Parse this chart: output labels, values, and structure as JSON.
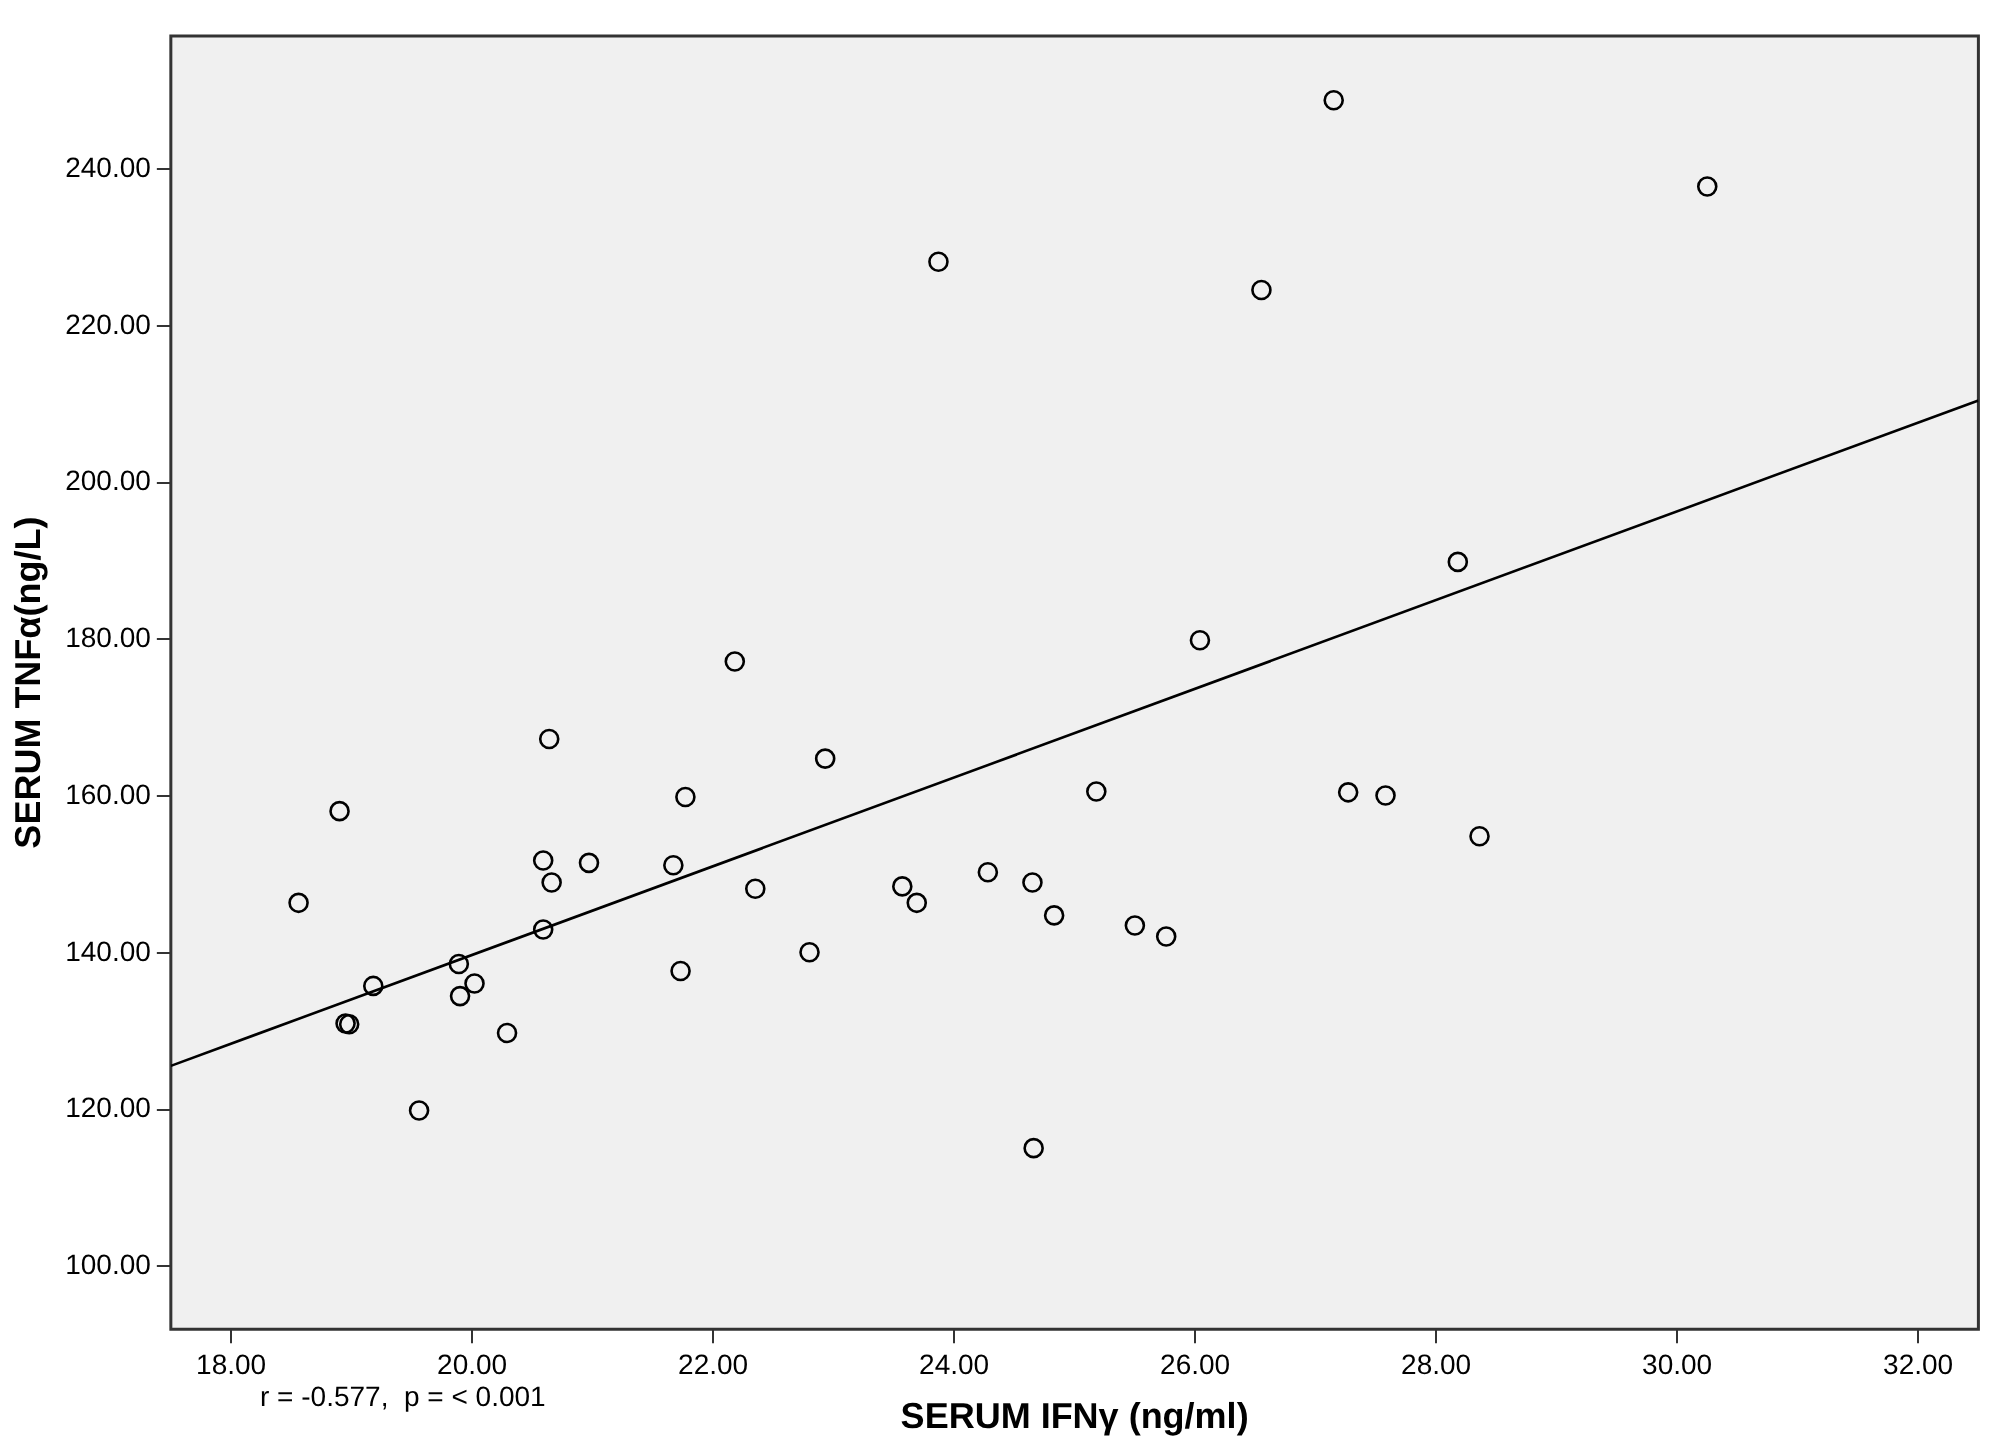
{
  "chart_data": {
    "type": "scatter",
    "xlabel": "SERUM IFNγ (ng/ml)",
    "ylabel": "SERUM TNFα(ng/L)",
    "annotations": [
      "r = -0.577,  p = < 0.001"
    ],
    "xlim": [
      17.5,
      32.5
    ],
    "ylim": [
      92,
      257
    ],
    "xticks": [
      {
        "value": 18,
        "label": "18.00"
      },
      {
        "value": 20,
        "label": "20.00"
      },
      {
        "value": 22,
        "label": "22.00"
      },
      {
        "value": 24,
        "label": "24.00"
      },
      {
        "value": 26,
        "label": "26.00"
      },
      {
        "value": 28,
        "label": "28.00"
      },
      {
        "value": 30,
        "label": "30.00"
      },
      {
        "value": 32,
        "label": "32.00"
      }
    ],
    "yticks": [
      {
        "value": 100,
        "label": "100.00"
      },
      {
        "value": 120,
        "label": "120.00"
      },
      {
        "value": 140,
        "label": "140.00"
      },
      {
        "value": 160,
        "label": "160.00"
      },
      {
        "value": 180,
        "label": "180.00"
      },
      {
        "value": 200,
        "label": "200.00"
      },
      {
        "value": 220,
        "label": "220.00"
      },
      {
        "value": 240,
        "label": "240.00"
      }
    ],
    "grid": false,
    "legend": false,
    "marker": "circle",
    "series": [
      {
        "color": "#000000",
        "x": [
          27.15,
          30.25,
          23.87,
          26.55,
          28.18,
          26.04,
          25.18,
          27.27,
          27.58,
          28.36,
          23.57,
          23.69,
          24.28,
          24.65,
          24.83,
          25.5,
          25.76,
          22.18,
          20.64,
          18.9,
          22.93,
          21.77,
          20.59,
          20.97,
          20.66,
          21.67,
          18.56,
          22.35,
          20.59,
          22.8,
          19.18,
          19.89,
          20.02,
          19.9,
          21.73,
          18.95,
          18.98,
          20.29,
          19.56,
          24.66
        ],
        "values": [
          248.8,
          237.8,
          228.2,
          224.6,
          189.9,
          179.9,
          160.6,
          160.5,
          160.1,
          154.9,
          148.5,
          146.4,
          150.3,
          149,
          144.8,
          143.5,
          142.1,
          177.2,
          167.3,
          158.1,
          164.8,
          159.9,
          151.8,
          151.5,
          149,
          151.2,
          146.4,
          148.2,
          143,
          140.1,
          135.8,
          138.6,
          136.1,
          134.5,
          137.7,
          131,
          130.9,
          129.8,
          119.9,
          115.1
        ]
      },
      {
        "type": "line",
        "color": "#000000",
        "line_style": "solid",
        "marker": "none",
        "x": [
          17.5,
          32.5
        ],
        "values": [
          125.6,
          210.5
        ]
      }
    ]
  }
}
